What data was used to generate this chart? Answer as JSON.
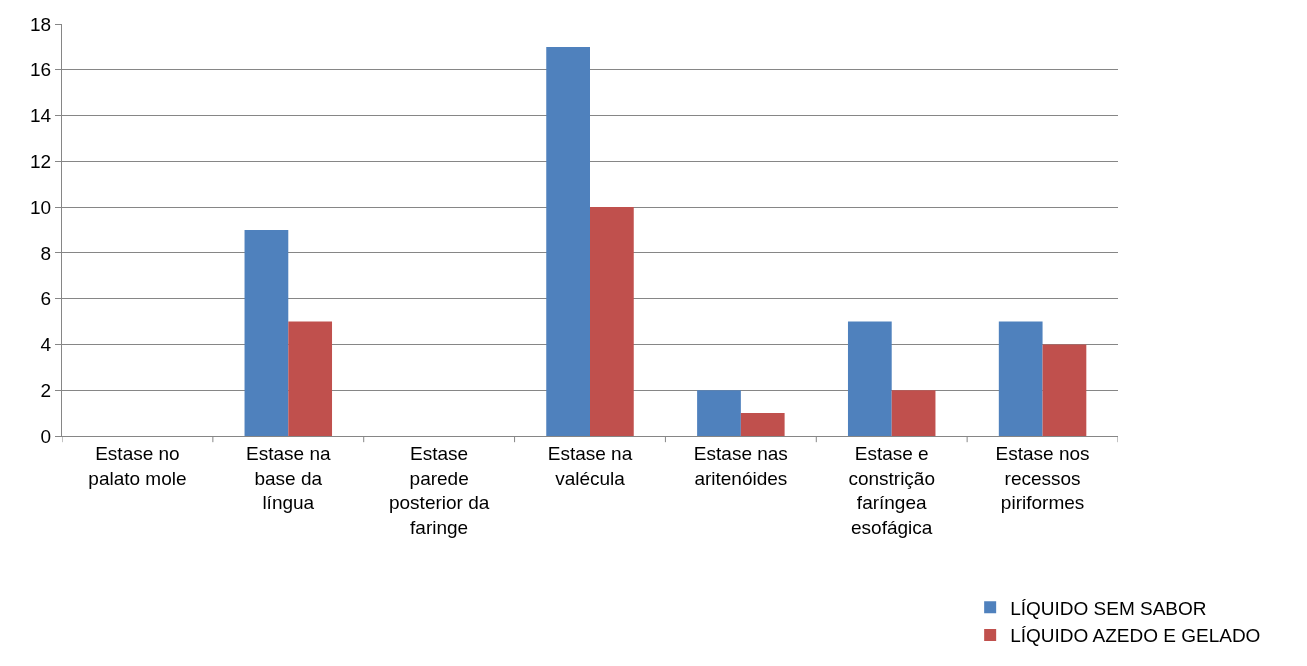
{
  "chart_data": {
    "type": "bar",
    "categories": [
      "Estase no palato mole",
      "Estase na base da língua",
      "Estase parede posterior da faringe",
      "Estase na valécula",
      "Estase nas aritenóides",
      "Estase e constrição faríngea esofágica",
      "Estase nos recessos piriformes"
    ],
    "series": [
      {
        "name": "LÍQUIDO SEM SABOR",
        "color": "#4f81bd",
        "values": [
          0,
          9,
          0,
          17,
          2,
          5,
          5
        ]
      },
      {
        "name": "LÍQUIDO AZEDO E GELADO",
        "color": "#c0504d",
        "values": [
          0,
          5,
          0,
          10,
          1,
          2,
          4
        ]
      }
    ],
    "ylim": [
      0,
      18
    ],
    "yticks": [
      0,
      2,
      4,
      6,
      8,
      10,
      12,
      14,
      16,
      18
    ],
    "grid": "y",
    "legend": "bottom right"
  }
}
